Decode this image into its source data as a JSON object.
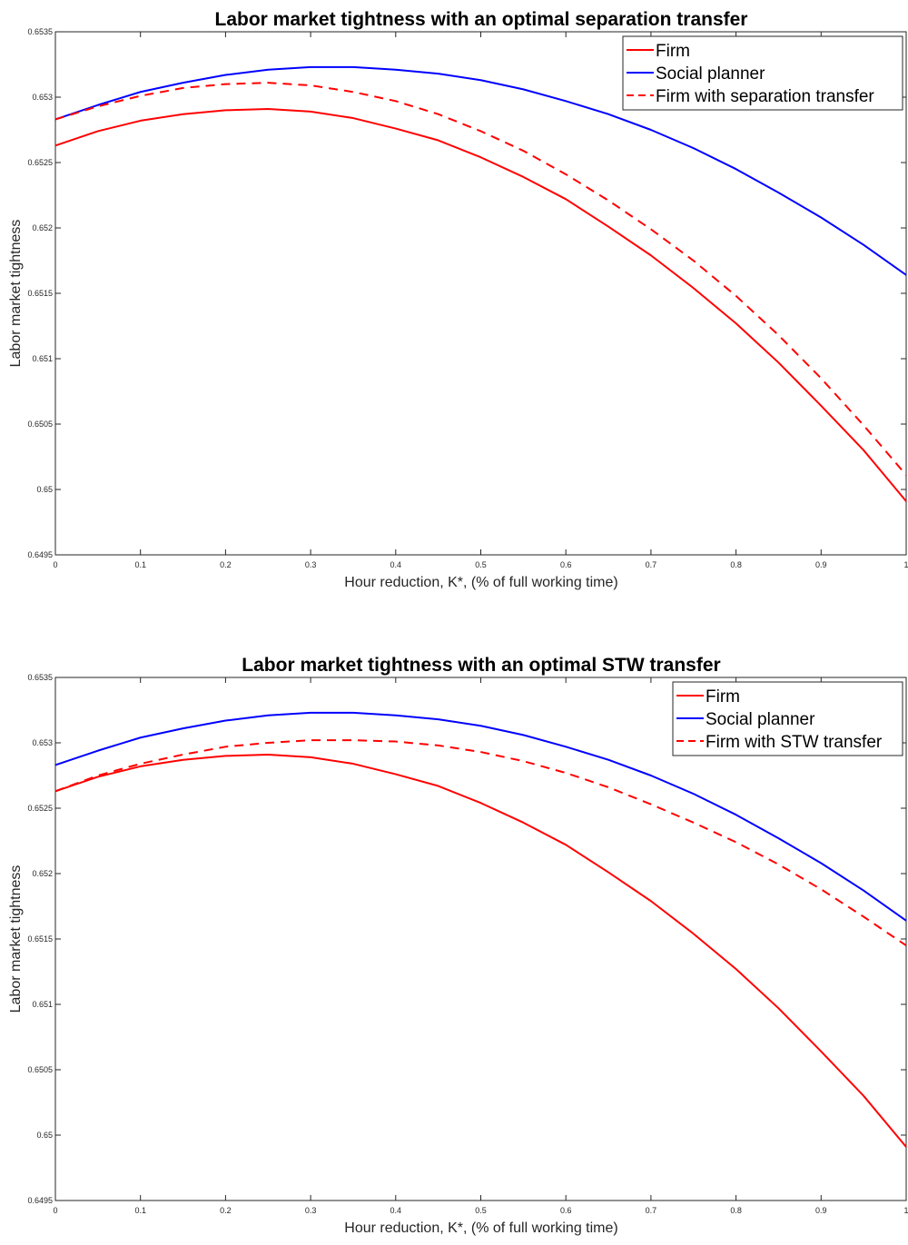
{
  "chart_data": [
    {
      "type": "line",
      "title": "Labor market tightness with an optimal separation transfer",
      "xlabel": "Hour reduction, K*, (% of full working time)",
      "ylabel": "Labor market tightness",
      "xlim": [
        0,
        1
      ],
      "ylim": [
        0.6495,
        0.6535
      ],
      "xticks": [
        0,
        0.1,
        0.2,
        0.3,
        0.4,
        0.5,
        0.6,
        0.7,
        0.8,
        0.9,
        1
      ],
      "xtick_labels": [
        "0",
        "0.1",
        "0.2",
        "0.3",
        "0.4",
        "0.5",
        "0.6",
        "0.7",
        "0.8",
        "0.9",
        "1"
      ],
      "yticks": [
        0.6495,
        0.65,
        0.6505,
        0.651,
        0.6515,
        0.652,
        0.6525,
        0.653,
        0.6535
      ],
      "ytick_labels": [
        "0.6495",
        "0.65",
        "0.6505",
        "0.651",
        "0.6515",
        "0.652",
        "0.6525",
        "0.653",
        "0.6535"
      ],
      "grid": false,
      "legend_position": "top-right",
      "x": [
        0,
        0.05,
        0.1,
        0.15,
        0.2,
        0.25,
        0.3,
        0.35,
        0.4,
        0.45,
        0.5,
        0.55,
        0.6,
        0.65,
        0.7,
        0.75,
        0.8,
        0.85,
        0.9,
        0.95,
        1
      ],
      "series": [
        {
          "name": "Firm",
          "color": "#ff0000",
          "dash": "solid",
          "values": [
            0.65263,
            0.65274,
            0.65282,
            0.65287,
            0.6529,
            0.65291,
            0.65289,
            0.65284,
            0.65276,
            0.65267,
            0.65254,
            0.65239,
            0.65222,
            0.65201,
            0.65179,
            0.65154,
            0.65127,
            0.65097,
            0.65064,
            0.6503,
            0.64991
          ]
        },
        {
          "name": "Social planner",
          "color": "#0000ff",
          "dash": "solid",
          "values": [
            0.65283,
            0.65294,
            0.65304,
            0.65311,
            0.65317,
            0.65321,
            0.65323,
            0.65323,
            0.65321,
            0.65318,
            0.65313,
            0.65306,
            0.65297,
            0.65287,
            0.65275,
            0.65261,
            0.65245,
            0.65227,
            0.65208,
            0.65187,
            0.65164
          ]
        },
        {
          "name": "Firm with separation transfer",
          "color": "#ff0000",
          "dash": "dashed",
          "values": [
            0.65283,
            0.65293,
            0.65301,
            0.65307,
            0.6531,
            0.65311,
            0.65309,
            0.65304,
            0.65297,
            0.65287,
            0.65274,
            0.65259,
            0.65241,
            0.65221,
            0.65199,
            0.65175,
            0.65148,
            0.65118,
            0.65085,
            0.65049,
            0.65011
          ]
        }
      ]
    },
    {
      "type": "line",
      "title": "Labor market tightness with an optimal STW transfer",
      "xlabel": "Hour reduction, K*, (% of full working time)",
      "ylabel": "Labor market tightness",
      "xlim": [
        0,
        1
      ],
      "ylim": [
        0.6495,
        0.6535
      ],
      "xticks": [
        0,
        0.1,
        0.2,
        0.3,
        0.4,
        0.5,
        0.6,
        0.7,
        0.8,
        0.9,
        1
      ],
      "xtick_labels": [
        "0",
        "0.1",
        "0.2",
        "0.3",
        "0.4",
        "0.5",
        "0.6",
        "0.7",
        "0.8",
        "0.9",
        "1"
      ],
      "yticks": [
        0.6495,
        0.65,
        0.6505,
        0.651,
        0.6515,
        0.652,
        0.6525,
        0.653,
        0.6535
      ],
      "ytick_labels": [
        "0.6495",
        "0.65",
        "0.6505",
        "0.651",
        "0.6515",
        "0.652",
        "0.6525",
        "0.653",
        "0.6535"
      ],
      "grid": false,
      "legend_position": "top-right",
      "x": [
        0,
        0.05,
        0.1,
        0.15,
        0.2,
        0.25,
        0.3,
        0.35,
        0.4,
        0.45,
        0.5,
        0.55,
        0.6,
        0.65,
        0.7,
        0.75,
        0.8,
        0.85,
        0.9,
        0.95,
        1
      ],
      "series": [
        {
          "name": "Firm",
          "color": "#ff0000",
          "dash": "solid",
          "values": [
            0.65263,
            0.65274,
            0.65282,
            0.65287,
            0.6529,
            0.65291,
            0.65289,
            0.65284,
            0.65276,
            0.65267,
            0.65254,
            0.65239,
            0.65222,
            0.65201,
            0.65179,
            0.65154,
            0.65127,
            0.65097,
            0.65064,
            0.6503,
            0.64991
          ]
        },
        {
          "name": "Social planner",
          "color": "#0000ff",
          "dash": "solid",
          "values": [
            0.65283,
            0.65294,
            0.65304,
            0.65311,
            0.65317,
            0.65321,
            0.65323,
            0.65323,
            0.65321,
            0.65318,
            0.65313,
            0.65306,
            0.65297,
            0.65287,
            0.65275,
            0.65261,
            0.65245,
            0.65227,
            0.65208,
            0.65187,
            0.65164
          ]
        },
        {
          "name": "Firm with STW transfer",
          "color": "#ff0000",
          "dash": "dashed",
          "values": [
            0.65263,
            0.65275,
            0.65284,
            0.65291,
            0.65297,
            0.653,
            0.65302,
            0.65302,
            0.65301,
            0.65298,
            0.65293,
            0.65286,
            0.65277,
            0.65266,
            0.65253,
            0.65239,
            0.65224,
            0.65207,
            0.65188,
            0.65167,
            0.65145
          ]
        }
      ]
    }
  ]
}
